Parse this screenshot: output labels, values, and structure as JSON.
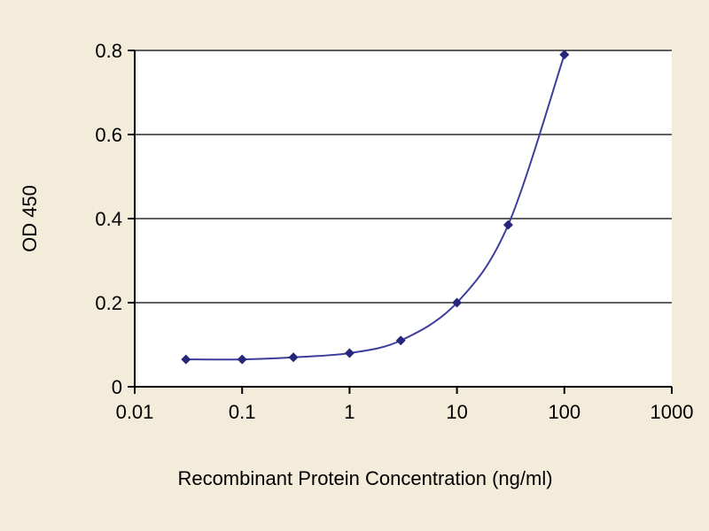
{
  "chart_data": {
    "type": "line",
    "title": "",
    "xlabel": "Recombinant Protein Concentration (ng/ml)",
    "ylabel": "OD 450",
    "x_scale": "log",
    "xlim": [
      0.01,
      1000
    ],
    "ylim": [
      0,
      0.8
    ],
    "x_ticks": [
      0.01,
      0.1,
      1,
      10,
      100,
      1000
    ],
    "x_tick_labels": [
      "0.01",
      "0.1",
      "1",
      "10",
      "100",
      "1000"
    ],
    "y_ticks": [
      0,
      0.2,
      0.4,
      0.6,
      0.8
    ],
    "y_tick_labels": [
      "0",
      "0.2",
      "0.4",
      "0.6",
      "0.8"
    ],
    "grid": "horizontal",
    "legend": "none",
    "series": [
      {
        "name": "OD 450",
        "x": [
          0.03,
          0.1,
          0.3,
          1,
          3,
          10,
          30,
          100
        ],
        "y": [
          0.065,
          0.065,
          0.07,
          0.08,
          0.11,
          0.2,
          0.385,
          0.79
        ],
        "line_color": "#3d3d9e",
        "marker": "diamond",
        "marker_color": "#26267a"
      }
    ],
    "colors": {
      "background": "#f4ecda",
      "plot_background": "#ffffff",
      "grid_color": "#000000",
      "axis_color": "#000000",
      "text_color": "#000000"
    }
  }
}
